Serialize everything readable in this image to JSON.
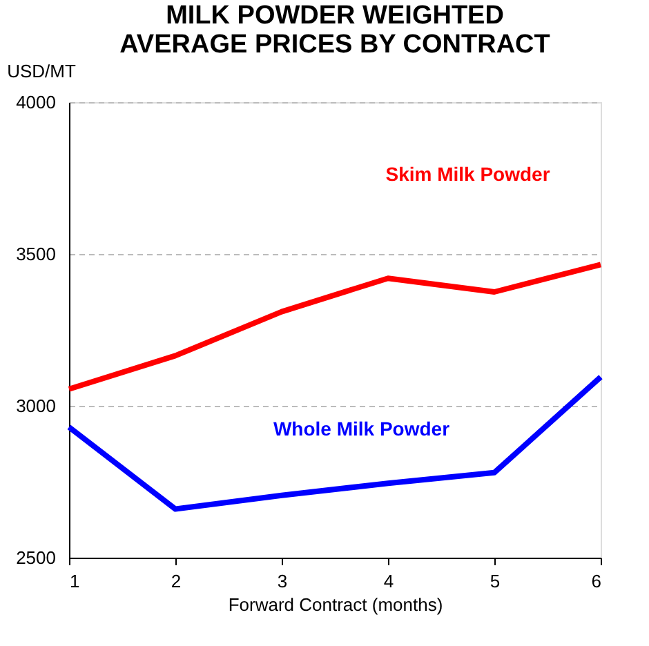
{
  "chart_data": {
    "type": "line",
    "title": "MILK POWDER WEIGHTED AVERAGE PRICES BY CONTRACT",
    "ylabel": "USD/MT",
    "xlabel": "Forward Contract (months)",
    "x": [
      1,
      2,
      3,
      4,
      5,
      6
    ],
    "xlim": [
      1,
      6
    ],
    "xticks": [
      1,
      2,
      3,
      4,
      5,
      6
    ],
    "ylim": [
      2500,
      4000
    ],
    "yticks": [
      2500,
      3000,
      3500,
      4000
    ],
    "grid": "y",
    "marker": "none",
    "line_style": "solid",
    "series": [
      {
        "name": "Skim Milk Powder",
        "color": "#ff0000",
        "values": [
          3055,
          3165,
          3310,
          3420,
          3375,
          3465
        ]
      },
      {
        "name": "Whole Milk Powder",
        "color": "#0000ff",
        "values": [
          2930,
          2660,
          2705,
          2745,
          2780,
          3095
        ]
      }
    ]
  }
}
